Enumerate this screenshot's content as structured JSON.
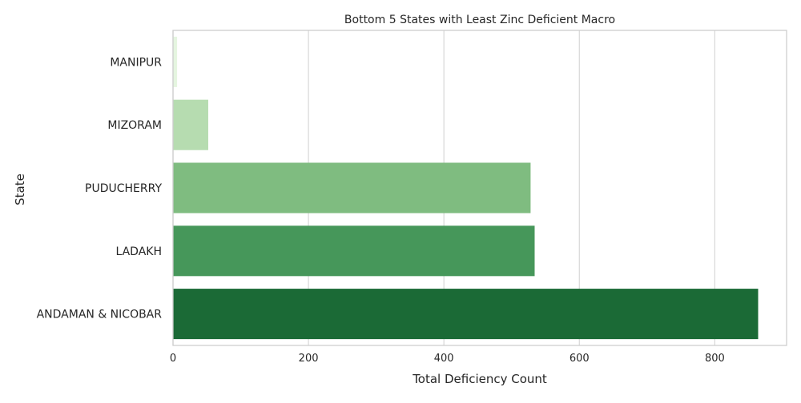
{
  "chart_data": {
    "type": "bar",
    "orientation": "horizontal",
    "title": "Bottom 5 States with Least Zinc Deficient Macro",
    "xlabel": "Total Deficiency Count",
    "ylabel": "State",
    "categories": [
      "MANIPUR",
      "MIZORAM",
      "PUDUCHERRY",
      "LADAKH",
      "ANDAMAN & NICOBAR"
    ],
    "values": [
      6,
      52,
      528,
      534,
      864
    ],
    "colors": [
      "#e5f5e0",
      "#b6dcb0",
      "#7fbc80",
      "#46975a",
      "#1b6a36"
    ],
    "xlim": [
      0,
      906
    ],
    "xticks": [
      0,
      200,
      400,
      600,
      800
    ],
    "grid": true
  }
}
